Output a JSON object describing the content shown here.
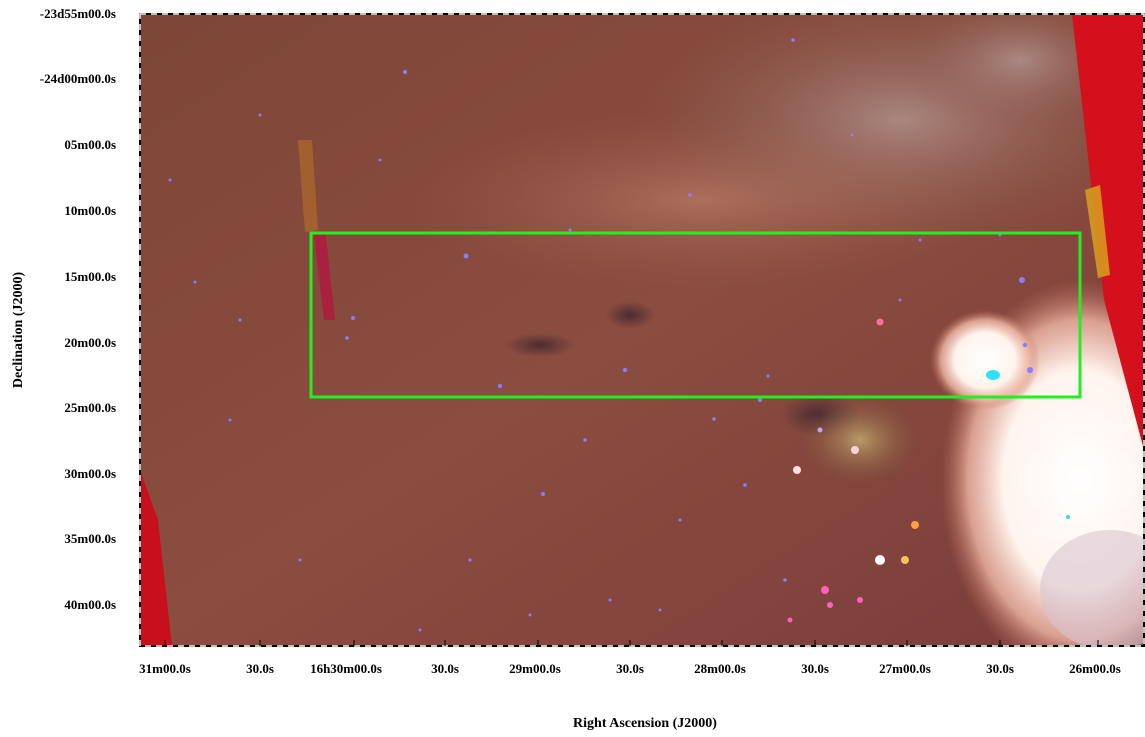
{
  "figure": {
    "description_type": "astronomical false-color image with celestial coordinate axes",
    "x_axis": {
      "title": "Right Ascension (J2000)",
      "tick_labels": [
        "31m00.0s",
        "30.0s",
        "16h30m00.0s",
        "30.0s",
        "29m00.0s",
        "30.0s",
        "28m00.0s",
        "30.0s",
        "27m00.0s",
        "30.0s",
        "26m00.0s"
      ]
    },
    "y_axis": {
      "title": "Declination (J2000)",
      "tick_labels": [
        "-23d55m00.0s",
        "-24d00m00.0s",
        "05m00.0s",
        "10m00.0s",
        "15m00.0s",
        "20m00.0s",
        "25m00.0s",
        "30m00.0s",
        "35m00.0s",
        "40m00.0s"
      ]
    },
    "overlay_box_color": "#22ee22",
    "colors": {
      "nebula_base": "#8a4c3e",
      "bright_region": "#ffffff",
      "edge_strip": "#d4101c",
      "star": "#8a7cff"
    }
  }
}
